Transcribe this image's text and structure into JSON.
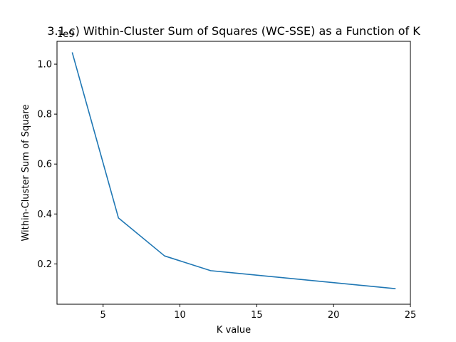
{
  "chart_data": {
    "type": "line",
    "title": "3.1 c) Within-Cluster Sum of Squares (WC-SSE) as a Function of K",
    "xlabel": "K value",
    "ylabel": "Within-Cluster Sum of Square",
    "y_offset_label": "1e9",
    "x": [
      3,
      6,
      9,
      12,
      24
    ],
    "series": [
      {
        "values": [
          1.045,
          0.384,
          0.232,
          0.173,
          0.101
        ],
        "color": "#1f77b4"
      }
    ],
    "xlim": [
      2.0,
      25.0
    ],
    "ylim": [
      0.0385,
      1.0915
    ],
    "xticks": [
      5,
      10,
      15,
      20,
      25
    ],
    "xtick_labels": [
      "5",
      "10",
      "15",
      "20",
      "25"
    ],
    "yticks": [
      0.2,
      0.4,
      0.6,
      0.8,
      1.0
    ],
    "ytick_labels": [
      "0.2",
      "0.4",
      "0.6",
      "0.8",
      "1.0"
    ],
    "grid": false,
    "legend": "none"
  }
}
